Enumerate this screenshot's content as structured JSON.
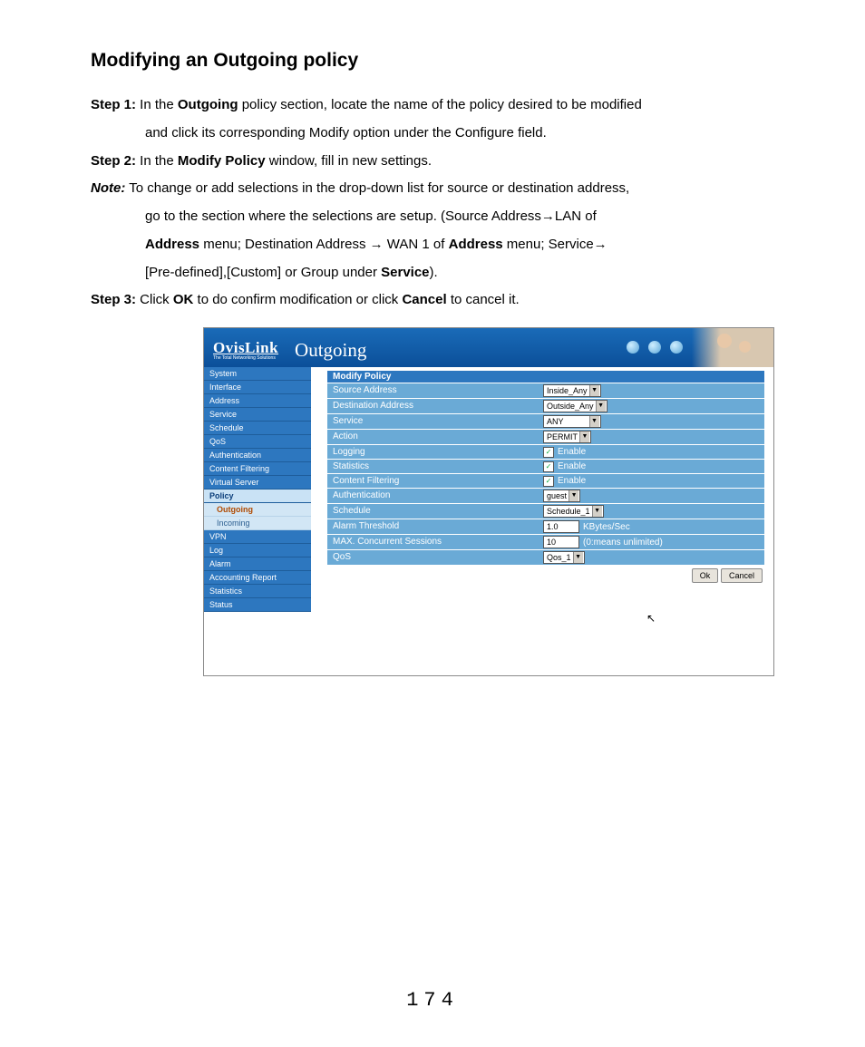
{
  "doc": {
    "title": "Modifying an Outgoing policy",
    "step1_label": "Step 1:",
    "step1_a": " In the ",
    "step1_b": "Outgoing",
    "step1_c": " policy section, locate the name of the policy desired to be modified",
    "step1_line2": "and click its corresponding Modify option under the Configure field.",
    "step2_label": "Step 2:",
    "step2_a": " In the ",
    "step2_b": "Modify Policy",
    "step2_c": " window, fill in new settings.",
    "note_label": "Note:",
    "note_a": "   To change or add selections in the drop-down list for source or destination address,",
    "note_l2a": "go to the section where the selections are setup.    (Source Address→LAN of",
    "note_l3a": "Address",
    "note_l3b": " menu; Destination Address  →  WAN 1 of   ",
    "note_l3c": "Address",
    "note_l3d": " menu;    Service→",
    "note_l4a": "[Pre-defined],[Custom] or Group under ",
    "note_l4b": "Service",
    "note_l4c": ").",
    "step3_label": "Step 3:",
    "step3_a": " Click ",
    "step3_b": "OK",
    "step3_c": " to do confirm modification or click ",
    "step3_d": "Cancel",
    "step3_e": " to cancel it.",
    "page_num": "174"
  },
  "shot": {
    "brand": "OvisLink",
    "brand_sub": "The Total Networking Solutions",
    "header_title": "Outgoing",
    "sidebar": [
      {
        "t": "System",
        "k": "item"
      },
      {
        "t": "Interface",
        "k": "item"
      },
      {
        "t": "Address",
        "k": "item"
      },
      {
        "t": "Service",
        "k": "item"
      },
      {
        "t": "Schedule",
        "k": "item"
      },
      {
        "t": "QoS",
        "k": "item"
      },
      {
        "t": "Authentication",
        "k": "item"
      },
      {
        "t": "Content Filtering",
        "k": "item"
      },
      {
        "t": "Virtual Server",
        "k": "item"
      },
      {
        "t": "Policy",
        "k": "item-sel"
      },
      {
        "t": "Outgoing",
        "k": "sub-sel"
      },
      {
        "t": "Incoming",
        "k": "sub"
      },
      {
        "t": "VPN",
        "k": "item"
      },
      {
        "t": "Log",
        "k": "item"
      },
      {
        "t": "Alarm",
        "k": "item"
      },
      {
        "t": "Accounting Report",
        "k": "item"
      },
      {
        "t": "Statistics",
        "k": "item"
      },
      {
        "t": "Status",
        "k": "item"
      }
    ],
    "form_title": "Modify Policy",
    "rows": [
      {
        "label": "Source Address",
        "type": "select",
        "value": "Inside_Any"
      },
      {
        "label": "Destination Address",
        "type": "select",
        "value": "Outside_Any"
      },
      {
        "label": "Service",
        "type": "select",
        "value": "ANY",
        "wide": true
      },
      {
        "label": "Action",
        "type": "select",
        "value": "PERMIT"
      },
      {
        "label": "Logging",
        "type": "check",
        "value": "Enable"
      },
      {
        "label": "Statistics",
        "type": "check",
        "value": "Enable"
      },
      {
        "label": "Content Filtering",
        "type": "check",
        "value": "Enable"
      },
      {
        "label": "Authentication",
        "type": "select",
        "value": "guest"
      },
      {
        "label": "Schedule",
        "type": "select",
        "value": "Schedule_1"
      },
      {
        "label": "Alarm Threshold",
        "type": "text",
        "value": "1.0",
        "suffix": "KBytes/Sec"
      },
      {
        "label": "MAX. Concurrent Sessions",
        "type": "text",
        "value": "10",
        "suffix": "(0:means unlimited)"
      },
      {
        "label": "QoS",
        "type": "select",
        "value": "Qos_1"
      }
    ],
    "buttons": {
      "ok": "Ok",
      "cancel": "Cancel"
    },
    "colors": {
      "header_grad_top": "#1a6bb8",
      "header_grad_bot": "#0b4f99",
      "side_item_bg": "#2d77bf",
      "side_item_sel_bg": "#c9e2f5",
      "side_sub_bg": "#d2e6f5",
      "row_bg": "#6aaad6",
      "btn_bg": "#e8e4dc"
    }
  }
}
